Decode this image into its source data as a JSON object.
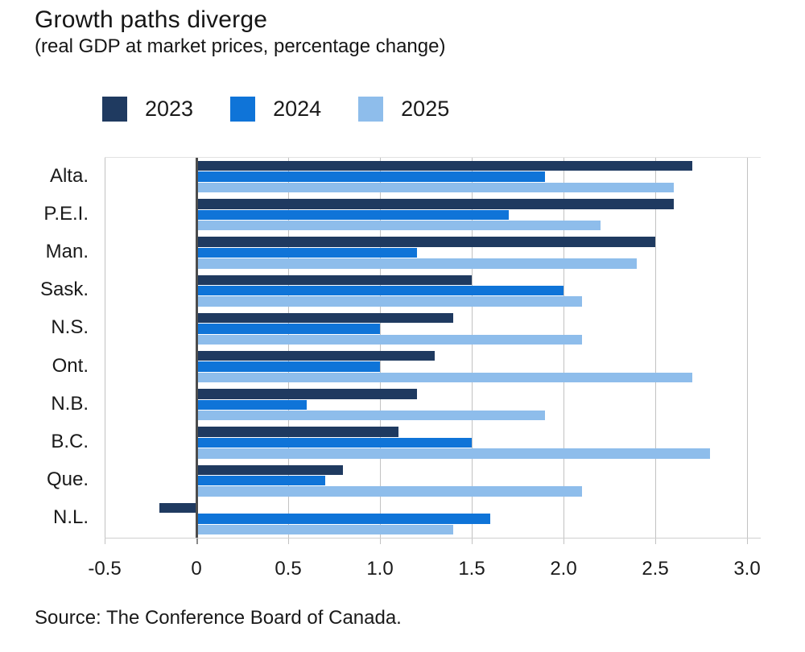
{
  "header": {
    "title": "Growth paths diverge",
    "subtitle": "(real GDP at market prices, percentage change)"
  },
  "footer": {
    "source": "Source: The Conference Board of Canada."
  },
  "colors": {
    "series_2023": "#1f3a60",
    "series_2024": "#0f74d8",
    "series_2025": "#8ebdeb",
    "gridline": "#c2c2c2",
    "zero_axis": "#4d4d4d",
    "text": "#1a1a1a"
  },
  "chart_data": {
    "type": "bar",
    "orientation": "horizontal",
    "title": "Growth paths diverge",
    "subtitle": "(real GDP at market prices, percentage change)",
    "categories": [
      "Alta.",
      "P.E.I.",
      "Man.",
      "Sask.",
      "N.S.",
      "Ont.",
      "N.B.",
      "B.C.",
      "Que.",
      "N.L."
    ],
    "series": [
      {
        "name": "2023",
        "color": "#1f3a60",
        "values": [
          2.7,
          2.6,
          2.5,
          1.5,
          1.4,
          1.3,
          1.2,
          1.1,
          0.8,
          -0.2
        ]
      },
      {
        "name": "2024",
        "color": "#0f74d8",
        "values": [
          1.9,
          1.7,
          1.2,
          2.0,
          1.0,
          1.0,
          0.6,
          1.5,
          0.7,
          1.6
        ]
      },
      {
        "name": "2025",
        "color": "#8ebdeb",
        "values": [
          2.6,
          2.2,
          2.4,
          2.1,
          2.1,
          2.7,
          1.9,
          2.8,
          2.1,
          1.4
        ]
      }
    ],
    "xlim": [
      -0.5,
      3.0
    ],
    "xticks": [
      -0.5,
      0,
      0.5,
      1.0,
      1.5,
      2.0,
      2.5,
      3.0
    ],
    "xtick_labels": [
      "-0.5",
      "0",
      "0.5",
      "1.0",
      "1.5",
      "2.0",
      "2.5",
      "3.0"
    ],
    "grid": true,
    "legend_position": "top",
    "source": "Source: The Conference Board of Canada."
  }
}
